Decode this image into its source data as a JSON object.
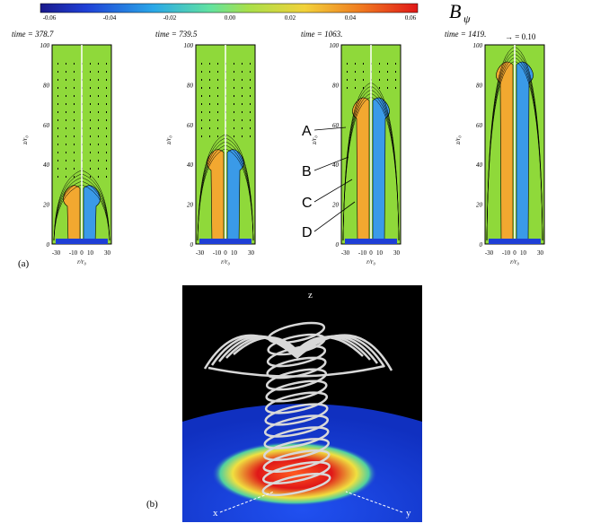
{
  "colorbar": {
    "ticks": [
      "-0.06",
      "-0.04",
      "-0.02",
      "0.00",
      "0.02",
      "0.04",
      "0.06"
    ],
    "label": "B",
    "label_sub": "ψ"
  },
  "panel_a": {
    "label": "(a)",
    "y_label": "z/r₀",
    "x_label": "r/r₀",
    "y_ticks": [
      "0",
      "20",
      "40",
      "60",
      "80",
      "100"
    ],
    "x_ticks": [
      "-30",
      "-10",
      "0",
      "10",
      "30"
    ],
    "times": [
      "time =  378.7",
      "time =  739.5",
      "time =  1063.",
      "time =  1419."
    ],
    "vector_legend": "→ = 0.10",
    "markers": [
      "A",
      "B",
      "C",
      "D"
    ]
  },
  "panel_b": {
    "label": "(b)",
    "axes": [
      "z",
      "x",
      "y"
    ]
  }
}
